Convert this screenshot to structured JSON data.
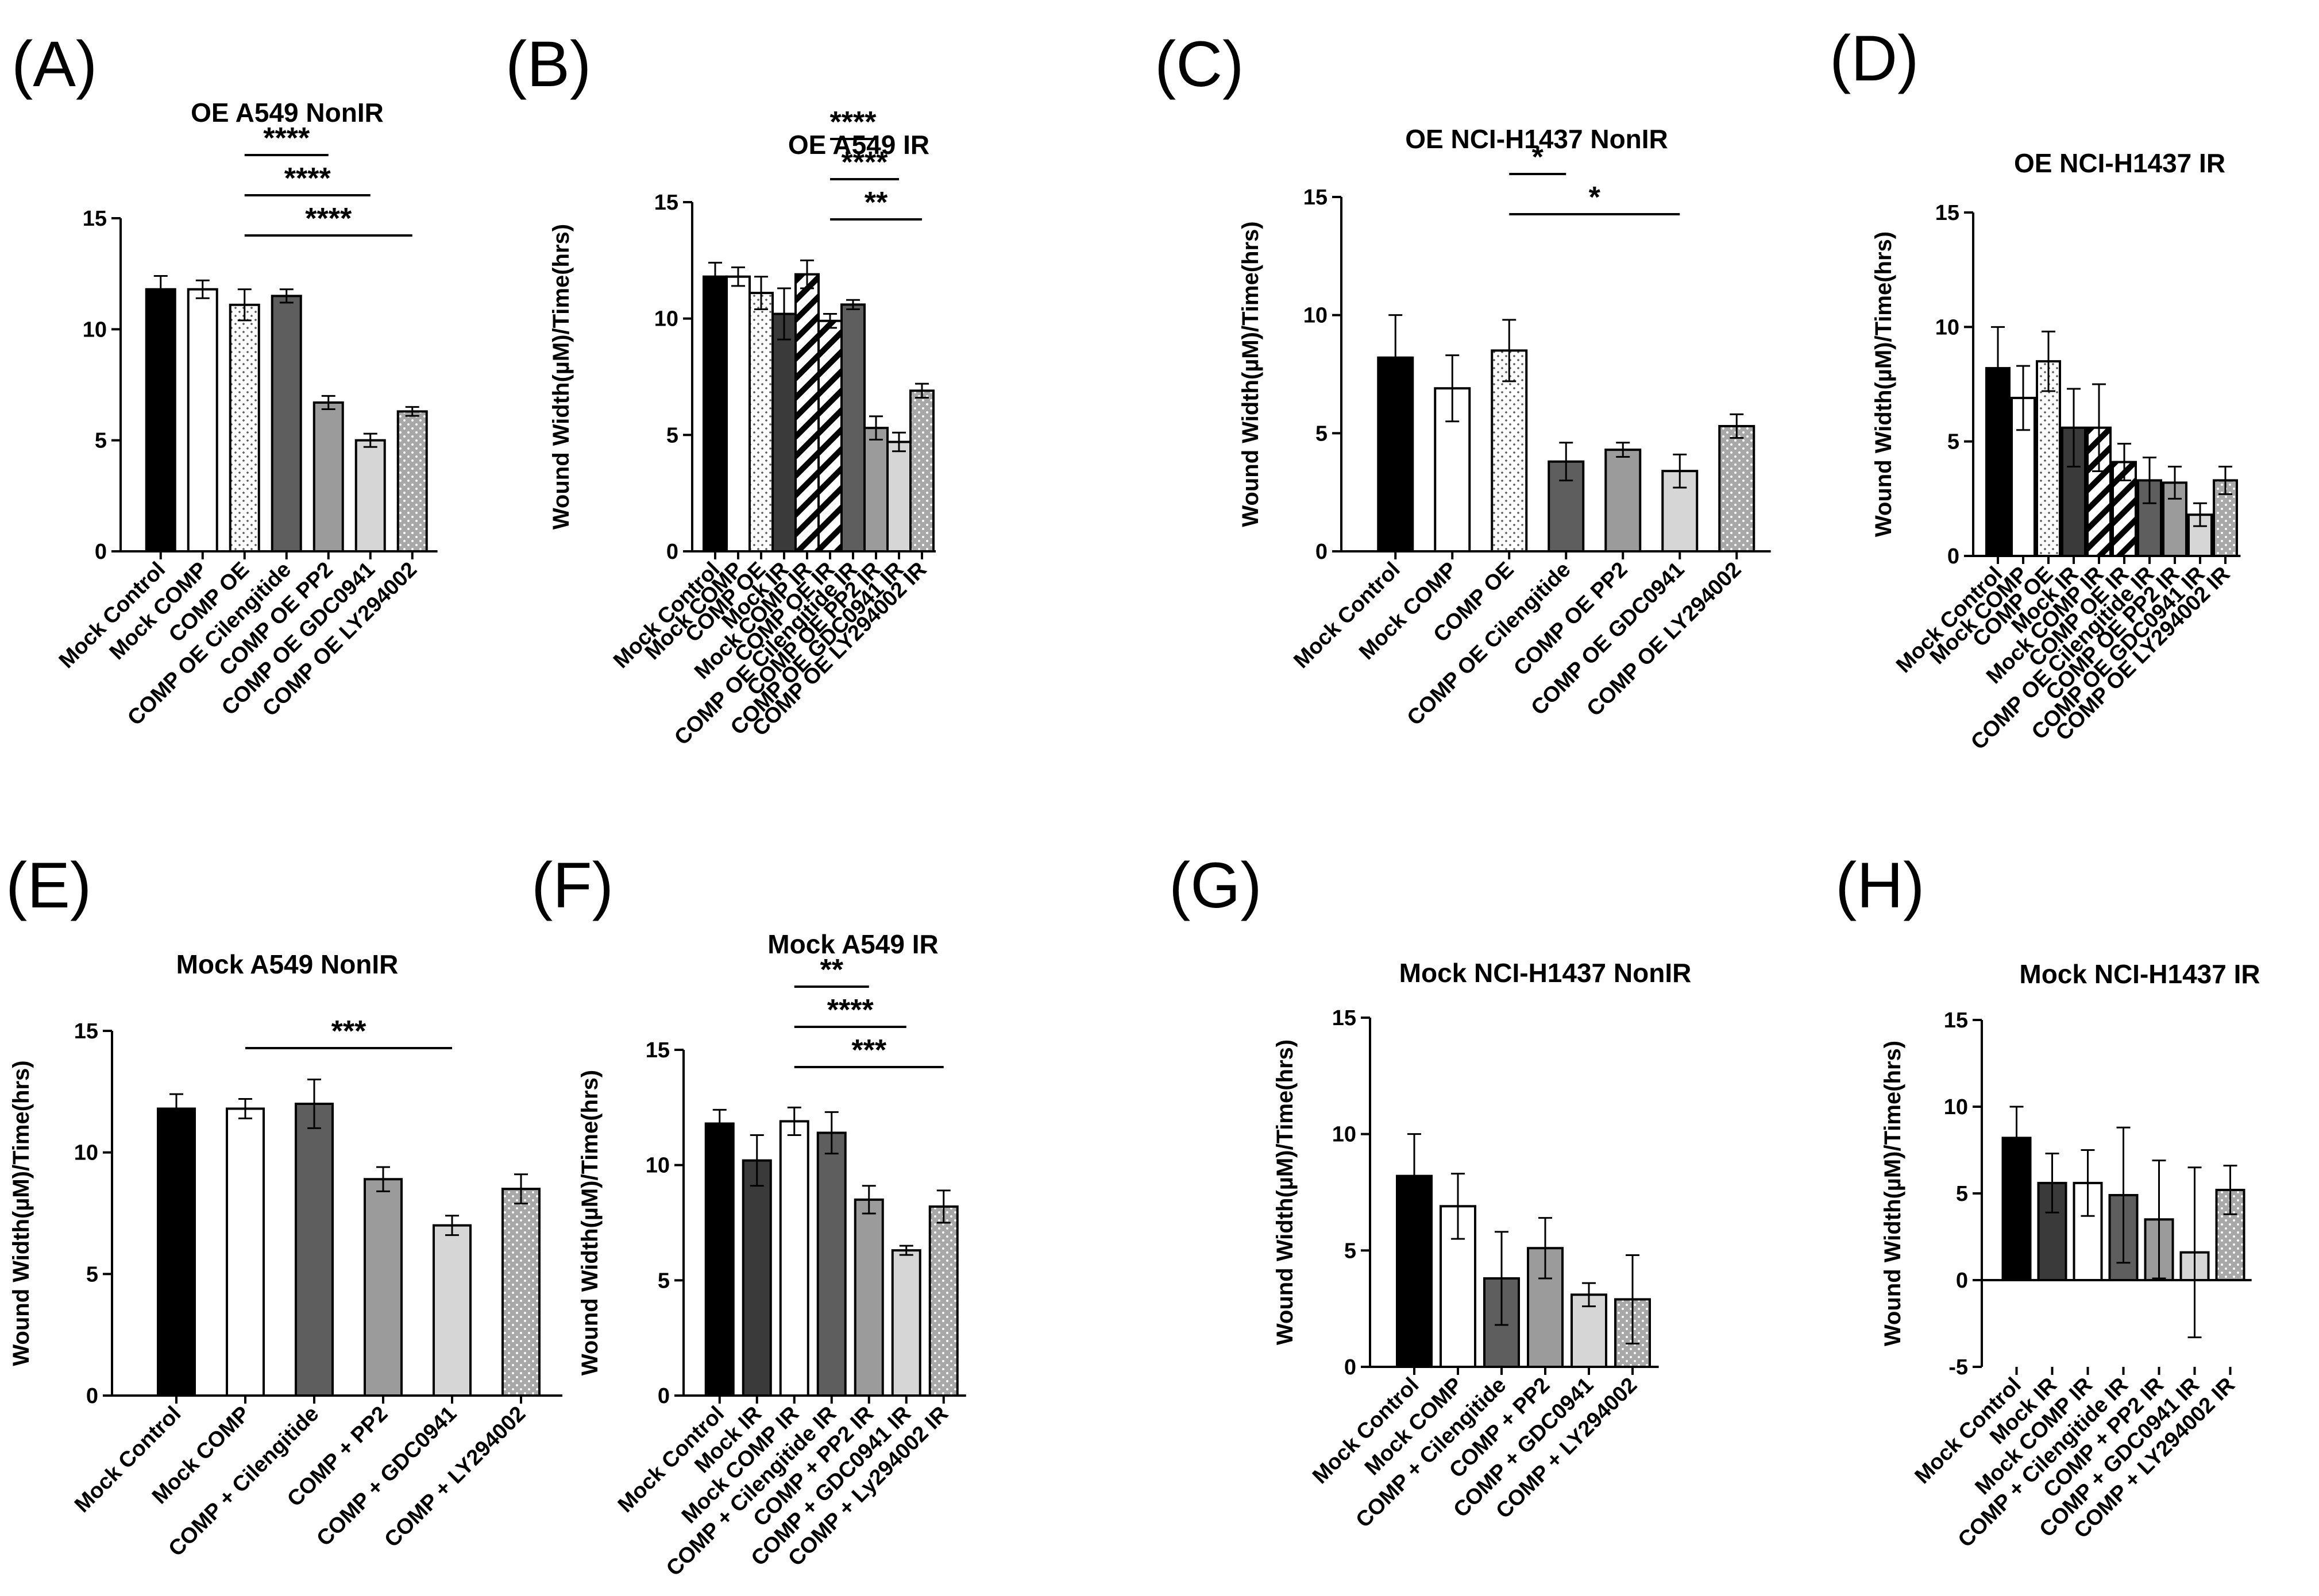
{
  "colors": {
    "black": "#000000",
    "white": "#ffffff",
    "dark_gray": "#3a3a3a",
    "mid_gray": "#5e5e5e",
    "gray": "#9b9b9b",
    "light_gray": "#d6d6d6",
    "dotted_fill": "#a8a8a8"
  },
  "chart_data": [
    {
      "panel": "(A)",
      "type": "bar",
      "title": "OE A549 NonIR",
      "ylabel": "Wound Width(µM)/Time(hrs)",
      "ylim": [
        0,
        15
      ],
      "yticks": [
        "0",
        "5",
        "10",
        "15"
      ],
      "categories": [
        "Mock Control",
        "Mock COMP",
        "COMP OE",
        "COMP OE Cilengitide",
        "COMP OE PP2",
        "COMP OE GDC0941",
        "COMP OE LY294002"
      ],
      "values": [
        11.8,
        11.8,
        11.1,
        11.5,
        6.7,
        5.0,
        6.3
      ],
      "errors": [
        0.6,
        0.4,
        0.7,
        0.3,
        0.3,
        0.3,
        0.2
      ],
      "fills": [
        "black",
        "white",
        "dots-light",
        "mid_gray",
        "gray",
        "light_gray",
        "dots-dark"
      ],
      "significance": [
        {
          "from": 2,
          "to": 4,
          "label": "****"
        },
        {
          "from": 2,
          "to": 5,
          "label": "****"
        },
        {
          "from": 2,
          "to": 6,
          "label": "****"
        }
      ]
    },
    {
      "panel": "(B)",
      "type": "bar",
      "title": "OE A549 IR",
      "ylabel": "Wound Width(µM)/Time(hrs)",
      "ylim": [
        0,
        15
      ],
      "yticks": [
        "0",
        "5",
        "10",
        "15"
      ],
      "categories": [
        "Mock Control",
        "Mock COMP",
        "COMP OE",
        "Mock IR",
        "Mock COMP IR",
        "COMP OE IR",
        "COMP OE Cilengitide IR",
        "COMP OE PP2 IR",
        "COMP OE GDC0941 IR",
        "COMP OE LY294002 IR"
      ],
      "values": [
        11.8,
        11.8,
        11.1,
        10.2,
        11.9,
        9.9,
        10.6,
        5.3,
        4.7,
        6.9
      ],
      "errors": [
        0.6,
        0.4,
        0.7,
        1.1,
        0.6,
        0.3,
        0.2,
        0.5,
        0.4,
        0.3
      ],
      "fills": [
        "black",
        "white",
        "dots-light",
        "dark_gray",
        "stripes",
        "stripes",
        "mid_gray",
        "gray",
        "light_gray",
        "dots-dark"
      ],
      "significance": [
        {
          "from": 5,
          "to": 7,
          "label": "****"
        },
        {
          "from": 5,
          "to": 8,
          "label": "****"
        },
        {
          "from": 5,
          "to": 9,
          "label": "**"
        }
      ]
    },
    {
      "panel": "(C)",
      "type": "bar",
      "title": "OE NCI-H1437 NonIR",
      "ylabel": "Wound Width(µM)/Time(hrs)",
      "ylim": [
        0,
        15
      ],
      "yticks": [
        "0",
        "5",
        "10",
        "15"
      ],
      "categories": [
        "Mock Control",
        "Mock COMP",
        "COMP OE",
        "COMP OE Cilengitide",
        "COMP OE PP2",
        "COMP OE GDC0941",
        "COMP OE LY294002"
      ],
      "values": [
        8.2,
        6.9,
        8.5,
        3.8,
        4.3,
        3.4,
        5.3
      ],
      "errors": [
        1.8,
        1.4,
        1.3,
        0.8,
        0.3,
        0.7,
        0.5
      ],
      "fills": [
        "black",
        "white",
        "dots-light",
        "mid_gray",
        "gray",
        "light_gray",
        "dots-dark"
      ],
      "significance": [
        {
          "from": 2,
          "to": 3,
          "label": "*"
        },
        {
          "from": 2,
          "to": 5,
          "label": "*"
        }
      ]
    },
    {
      "panel": "(D)",
      "type": "bar",
      "title": "OE NCI-H1437 IR",
      "ylabel": "Wound Width(µM)/Time(hrs)",
      "ylim": [
        0,
        15
      ],
      "yticks": [
        "0",
        "5",
        "10",
        "15"
      ],
      "categories": [
        "Mock Control",
        "Mock COMP",
        "COMP OE",
        "Mock IR",
        "Mock COMP IR",
        "COMP OE IR",
        "COMP OE Cilengitide IR",
        "COMP OE PP2 IR",
        "COMP OE GDC0941 IR",
        "COMP OE LY294002 IR"
      ],
      "values": [
        8.2,
        6.9,
        8.5,
        5.6,
        5.6,
        4.1,
        3.3,
        3.2,
        1.8,
        3.3
      ],
      "errors": [
        1.8,
        1.4,
        1.3,
        1.7,
        1.9,
        0.8,
        1.0,
        0.7,
        0.5,
        0.6
      ],
      "fills": [
        "black",
        "white",
        "dots-light",
        "dark_gray",
        "stripes",
        "stripes",
        "mid_gray",
        "gray",
        "light_gray",
        "dots-dark"
      ],
      "significance": []
    },
    {
      "panel": "(E)",
      "type": "bar",
      "title": "Mock A549 NonIR",
      "ylabel": "Wound Width(µM)/Time(hrs)",
      "ylim": [
        0,
        15
      ],
      "yticks": [
        "0",
        "5",
        "10",
        "15"
      ],
      "categories": [
        "Mock Control",
        "Mock COMP",
        "COMP + Cilengitide",
        "COMP + PP2",
        "COMP + GDC0941",
        "COMP + LY294002"
      ],
      "values": [
        11.8,
        11.8,
        12.0,
        8.9,
        7.0,
        8.5
      ],
      "errors": [
        0.6,
        0.4,
        1.0,
        0.5,
        0.4,
        0.6
      ],
      "fills": [
        "black",
        "white",
        "mid_gray",
        "gray",
        "light_gray",
        "dots-dark"
      ],
      "significance": [
        {
          "from": 1,
          "to": 4,
          "label": "***"
        }
      ]
    },
    {
      "panel": "(F)",
      "type": "bar",
      "title": "Mock A549 IR",
      "ylabel": "Wound Width(µM)/Time(hrs)",
      "ylim": [
        0,
        15
      ],
      "yticks": [
        "0",
        "5",
        "10",
        "15"
      ],
      "categories": [
        "Mock Control",
        "Mock IR",
        "Mock COMP IR",
        "COMP + Cilengitide IR",
        "COMP + PP2 IR",
        "COMP + GDC0941 IR",
        "COMP + Ly294002 IR"
      ],
      "values": [
        11.8,
        10.2,
        11.9,
        11.4,
        8.5,
        6.3,
        8.2
      ],
      "errors": [
        0.6,
        1.1,
        0.6,
        0.9,
        0.6,
        0.2,
        0.7
      ],
      "fills": [
        "black",
        "dark_gray",
        "white",
        "mid_gray",
        "gray",
        "light_gray",
        "dots-dark"
      ],
      "significance": [
        {
          "from": 2,
          "to": 4,
          "label": "**"
        },
        {
          "from": 2,
          "to": 5,
          "label": "****"
        },
        {
          "from": 2,
          "to": 6,
          "label": "***"
        }
      ]
    },
    {
      "panel": "(G)",
      "type": "bar",
      "title": "Mock NCI-H1437 NonIR",
      "ylabel": "Wound Width(µM)/Time(hrs)",
      "ylim": [
        0,
        15
      ],
      "yticks": [
        "0",
        "5",
        "10",
        "15"
      ],
      "categories": [
        "Mock Control",
        "Mock COMP",
        "COMP + Cilengitide",
        "COMP + PP2",
        "COMP + GDC0941",
        "COMP + LY294002"
      ],
      "values": [
        8.2,
        6.9,
        3.8,
        5.1,
        3.1,
        2.9
      ],
      "errors": [
        1.8,
        1.4,
        2.0,
        1.3,
        0.5,
        1.9
      ],
      "fills": [
        "black",
        "white",
        "mid_gray",
        "gray",
        "light_gray",
        "dots-dark"
      ],
      "significance": []
    },
    {
      "panel": "(H)",
      "type": "bar",
      "title": "Mock NCI-H1437 IR",
      "ylabel": "Wound Width(µM)/Time(hrs)",
      "ylim": [
        -5,
        15
      ],
      "yticks": [
        "-5",
        "0",
        "5",
        "10",
        "15"
      ],
      "categories": [
        "Mock Control",
        "Mock IR",
        "Mock COMP IR",
        "COMP + Cilengitide IR",
        "COMP + PP2 IR",
        "COMP + GDC0941 IR",
        "COMP + LY294002 IR"
      ],
      "values": [
        8.2,
        5.6,
        5.6,
        4.9,
        3.5,
        1.6,
        5.2
      ],
      "errors": [
        1.8,
        1.7,
        1.9,
        3.9,
        3.4,
        4.9,
        1.4
      ],
      "fills": [
        "black",
        "dark_gray",
        "white",
        "mid_gray",
        "gray",
        "light_gray",
        "dots-dark"
      ],
      "significance": []
    }
  ]
}
